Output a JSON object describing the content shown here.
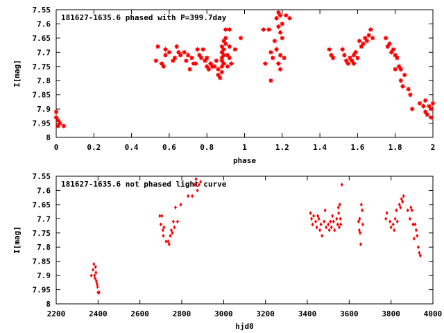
{
  "chart_data": [
    {
      "type": "scatter",
      "title": "181627-1635.6 phased with P=399.7day",
      "xlabel": "phase",
      "ylabel": "I[mag]",
      "xlim": [
        0,
        2
      ],
      "ylim": [
        7.55,
        8.0
      ],
      "y_inverted": true,
      "x_ticks": [
        "0",
        "0.2",
        "0.4",
        "0.6",
        "0.8",
        "1",
        "1.2",
        "1.4",
        "1.6",
        "1.8",
        "2"
      ],
      "y_ticks": [
        "7.55",
        "7.6",
        "7.65",
        "7.7",
        "7.75",
        "7.8",
        "7.85",
        "7.9",
        "7.95",
        "8"
      ],
      "marker": "star",
      "color": "#ff0000",
      "points": [
        [
          0.0,
          7.91
        ],
        [
          0.0,
          7.93
        ],
        [
          0.01,
          7.94
        ],
        [
          0.01,
          7.96
        ],
        [
          0.02,
          7.95
        ],
        [
          0.04,
          7.96
        ],
        [
          0.53,
          7.73
        ],
        [
          0.54,
          7.68
        ],
        [
          0.56,
          7.74
        ],
        [
          0.57,
          7.75
        ],
        [
          0.58,
          7.69
        ],
        [
          0.58,
          7.71
        ],
        [
          0.6,
          7.7
        ],
        [
          0.62,
          7.73
        ],
        [
          0.63,
          7.72
        ],
        [
          0.64,
          7.68
        ],
        [
          0.65,
          7.7
        ],
        [
          0.66,
          7.71
        ],
        [
          0.68,
          7.7
        ],
        [
          0.69,
          7.73
        ],
        [
          0.7,
          7.71
        ],
        [
          0.71,
          7.76
        ],
        [
          0.72,
          7.72
        ],
        [
          0.73,
          7.74
        ],
        [
          0.74,
          7.74
        ],
        [
          0.75,
          7.69
        ],
        [
          0.76,
          7.71
        ],
        [
          0.77,
          7.72
        ],
        [
          0.78,
          7.69
        ],
        [
          0.79,
          7.73
        ],
        [
          0.8,
          7.75
        ],
        [
          0.8,
          7.72
        ],
        [
          0.81,
          7.76
        ],
        [
          0.82,
          7.74
        ],
        [
          0.83,
          7.75
        ],
        [
          0.84,
          7.75
        ],
        [
          0.85,
          7.73
        ],
        [
          0.86,
          7.78
        ],
        [
          0.86,
          7.76
        ],
        [
          0.87,
          7.79
        ],
        [
          0.88,
          7.68
        ],
        [
          0.88,
          7.7
        ],
        [
          0.88,
          7.72
        ],
        [
          0.88,
          7.73
        ],
        [
          0.88,
          7.75
        ],
        [
          0.88,
          7.77
        ],
        [
          0.89,
          7.66
        ],
        [
          0.89,
          7.69
        ],
        [
          0.89,
          7.71
        ],
        [
          0.89,
          7.74
        ],
        [
          0.9,
          7.62
        ],
        [
          0.9,
          7.65
        ],
        [
          0.9,
          7.67
        ],
        [
          0.91,
          7.71
        ],
        [
          0.91,
          7.75
        ],
        [
          0.92,
          7.62
        ],
        [
          0.92,
          7.68
        ],
        [
          0.92,
          7.72
        ],
        [
          0.93,
          7.74
        ],
        [
          0.95,
          7.69
        ],
        [
          0.98,
          7.65
        ],
        [
          1.1,
          7.62
        ],
        [
          1.11,
          7.74
        ],
        [
          1.13,
          7.62
        ],
        [
          1.14,
          7.7
        ],
        [
          1.14,
          7.8
        ],
        [
          1.15,
          7.72
        ],
        [
          1.16,
          7.66
        ],
        [
          1.17,
          7.58
        ],
        [
          1.17,
          7.69
        ],
        [
          1.18,
          7.56
        ],
        [
          1.18,
          7.61
        ],
        [
          1.18,
          7.74
        ],
        [
          1.19,
          7.57
        ],
        [
          1.19,
          7.63
        ],
        [
          1.19,
          7.71
        ],
        [
          1.19,
          7.76
        ],
        [
          1.2,
          7.6
        ],
        [
          1.2,
          7.65
        ],
        [
          1.21,
          7.72
        ],
        [
          1.22,
          7.57
        ],
        [
          1.24,
          7.58
        ],
        [
          1.45,
          7.69
        ],
        [
          1.46,
          7.71
        ],
        [
          1.47,
          7.72
        ],
        [
          1.52,
          7.69
        ],
        [
          1.53,
          7.71
        ],
        [
          1.54,
          7.73
        ],
        [
          1.55,
          7.74
        ],
        [
          1.56,
          7.72
        ],
        [
          1.57,
          7.73
        ],
        [
          1.58,
          7.74
        ],
        [
          1.58,
          7.71
        ],
        [
          1.59,
          7.7
        ],
        [
          1.6,
          7.72
        ],
        [
          1.61,
          7.66
        ],
        [
          1.62,
          7.68
        ],
        [
          1.63,
          7.67
        ],
        [
          1.64,
          7.65
        ],
        [
          1.65,
          7.66
        ],
        [
          1.66,
          7.64
        ],
        [
          1.67,
          7.62
        ],
        [
          1.68,
          7.65
        ],
        [
          1.75,
          7.65
        ],
        [
          1.76,
          7.68
        ],
        [
          1.77,
          7.67
        ],
        [
          1.78,
          7.7
        ],
        [
          1.79,
          7.69
        ],
        [
          1.8,
          7.71
        ],
        [
          1.8,
          7.76
        ],
        [
          1.81,
          7.72
        ],
        [
          1.82,
          7.75
        ],
        [
          1.83,
          7.8
        ],
        [
          1.83,
          7.76
        ],
        [
          1.84,
          7.82
        ],
        [
          1.85,
          7.78
        ],
        [
          1.87,
          7.83
        ],
        [
          1.88,
          7.85
        ],
        [
          1.89,
          7.9
        ],
        [
          1.93,
          7.88
        ],
        [
          1.95,
          7.89
        ],
        [
          1.96,
          7.91
        ],
        [
          1.96,
          7.87
        ],
        [
          1.97,
          7.92
        ],
        [
          1.98,
          7.89
        ],
        [
          1.99,
          7.9
        ],
        [
          1.99,
          7.93
        ],
        [
          2.0,
          7.88
        ]
      ]
    },
    {
      "type": "scatter",
      "title": "181627-1635.6 not phased light curve",
      "xlabel": "hjd0",
      "ylabel": "I[mag]",
      "xlim": [
        2200,
        4000
      ],
      "ylim": [
        7.55,
        8.0
      ],
      "y_inverted": true,
      "x_ticks": [
        "2200",
        "2400",
        "2600",
        "2800",
        "3000",
        "3200",
        "3400",
        "3600",
        "3800",
        "4000"
      ],
      "y_ticks": [
        "7.55",
        "7.6",
        "7.65",
        "7.7",
        "7.75",
        "7.8",
        "7.85",
        "7.9",
        "7.95",
        "8"
      ],
      "marker": "diamond",
      "color": "#ff0000",
      "points": [
        [
          2368,
          7.9
        ],
        [
          2376,
          7.88
        ],
        [
          2380,
          7.86
        ],
        [
          2383,
          7.9
        ],
        [
          2386,
          7.91
        ],
        [
          2388,
          7.87
        ],
        [
          2390,
          7.89
        ],
        [
          2392,
          7.92
        ],
        [
          2395,
          7.93
        ],
        [
          2398,
          7.94
        ],
        [
          2400,
          7.96
        ],
        [
          2405,
          7.96
        ],
        [
          2695,
          7.69
        ],
        [
          2700,
          7.72
        ],
        [
          2705,
          7.69
        ],
        [
          2710,
          7.74
        ],
        [
          2712,
          7.76
        ],
        [
          2715,
          7.73
        ],
        [
          2725,
          7.78
        ],
        [
          2735,
          7.78
        ],
        [
          2740,
          7.79
        ],
        [
          2745,
          7.76
        ],
        [
          2750,
          7.74
        ],
        [
          2755,
          7.75
        ],
        [
          2760,
          7.71
        ],
        [
          2765,
          7.73
        ],
        [
          2770,
          7.66
        ],
        [
          2780,
          7.71
        ],
        [
          2795,
          7.65
        ],
        [
          2830,
          7.62
        ],
        [
          2850,
          7.62
        ],
        [
          2862,
          7.58
        ],
        [
          2868,
          7.56
        ],
        [
          2875,
          7.6
        ],
        [
          2882,
          7.58
        ],
        [
          2890,
          7.57
        ],
        [
          3415,
          7.68
        ],
        [
          3420,
          7.7
        ],
        [
          3425,
          7.72
        ],
        [
          3430,
          7.69
        ],
        [
          3440,
          7.71
        ],
        [
          3445,
          7.73
        ],
        [
          3450,
          7.69
        ],
        [
          3455,
          7.7
        ],
        [
          3460,
          7.74
        ],
        [
          3465,
          7.72
        ],
        [
          3470,
          7.76
        ],
        [
          3480,
          7.71
        ],
        [
          3485,
          7.67
        ],
        [
          3490,
          7.73
        ],
        [
          3500,
          7.72
        ],
        [
          3505,
          7.74
        ],
        [
          3510,
          7.71
        ],
        [
          3515,
          7.73
        ],
        [
          3520,
          7.69
        ],
        [
          3525,
          7.71
        ],
        [
          3530,
          7.74
        ],
        [
          3540,
          7.7
        ],
        [
          3545,
          7.72
        ],
        [
          3548,
          7.66
        ],
        [
          3550,
          7.68
        ],
        [
          3552,
          7.73
        ],
        [
          3555,
          7.65
        ],
        [
          3558,
          7.7
        ],
        [
          3560,
          7.72
        ],
        [
          3565,
          7.58
        ],
        [
          3645,
          7.71
        ],
        [
          3648,
          7.74
        ],
        [
          3650,
          7.7
        ],
        [
          3652,
          7.75
        ],
        [
          3655,
          7.79
        ],
        [
          3658,
          7.65
        ],
        [
          3662,
          7.67
        ],
        [
          3665,
          7.72
        ],
        [
          3775,
          7.7
        ],
        [
          3780,
          7.68
        ],
        [
          3795,
          7.71
        ],
        [
          3800,
          7.73
        ],
        [
          3810,
          7.72
        ],
        [
          3815,
          7.74
        ],
        [
          3820,
          7.7
        ],
        [
          3825,
          7.67
        ],
        [
          3830,
          7.71
        ],
        [
          3840,
          7.65
        ],
        [
          3845,
          7.66
        ],
        [
          3850,
          7.63
        ],
        [
          3855,
          7.64
        ],
        [
          3860,
          7.62
        ],
        [
          3880,
          7.67
        ],
        [
          3890,
          7.7
        ],
        [
          3895,
          7.66
        ],
        [
          3900,
          7.67
        ],
        [
          3905,
          7.72
        ],
        [
          3910,
          7.77
        ],
        [
          3915,
          7.72
        ],
        [
          3920,
          7.74
        ],
        [
          3925,
          7.76
        ],
        [
          3930,
          7.8
        ],
        [
          3935,
          7.82
        ],
        [
          3940,
          7.83
        ]
      ]
    }
  ]
}
